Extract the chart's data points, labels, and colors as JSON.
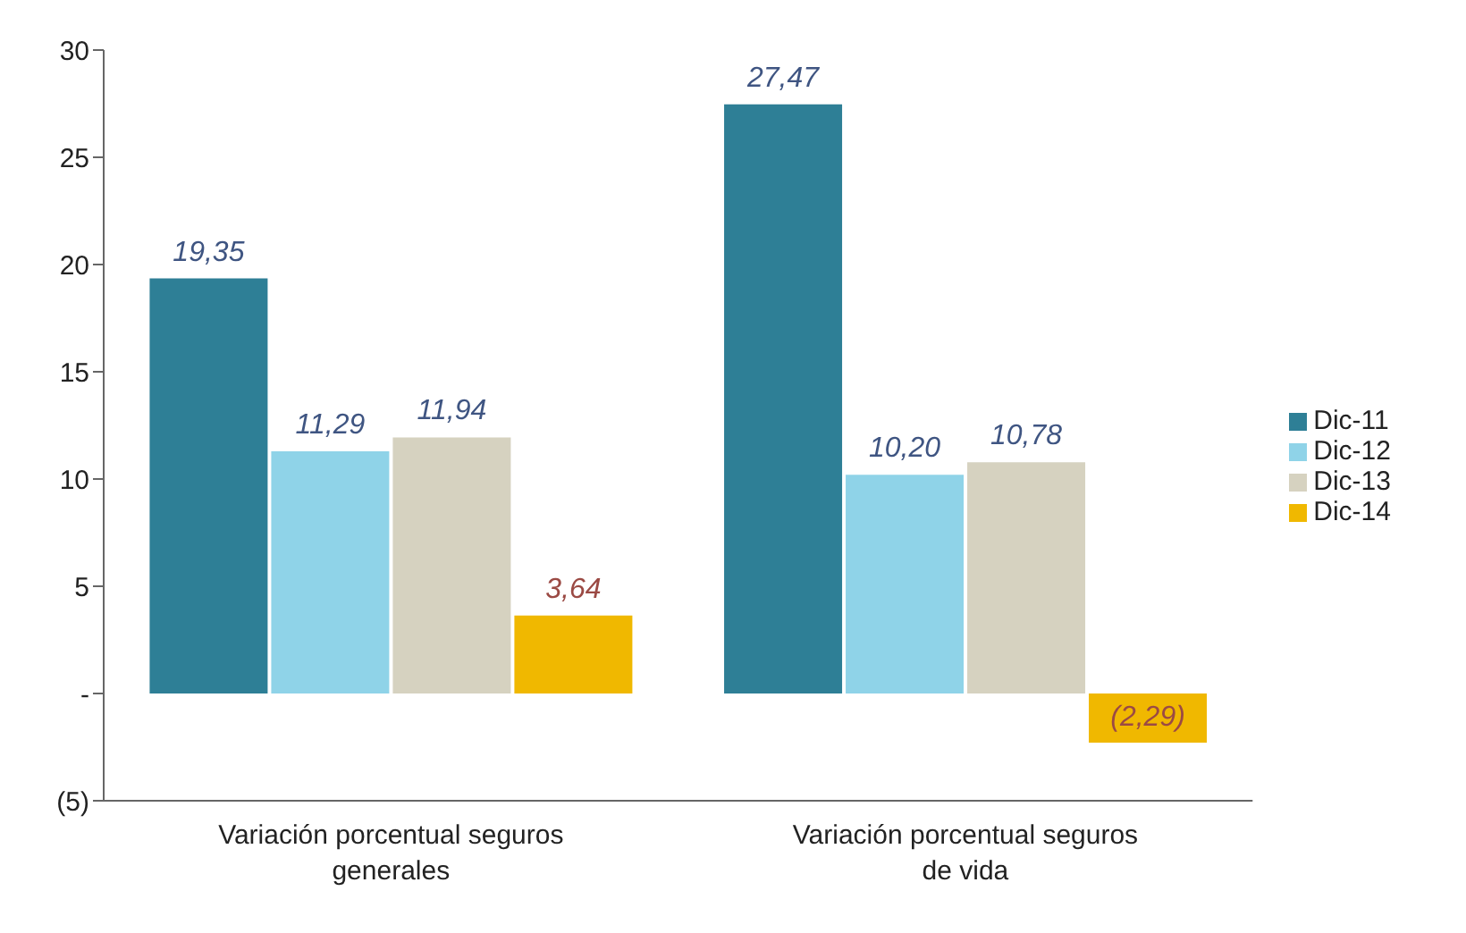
{
  "chart_data": {
    "type": "bar",
    "categories": [
      "Variación porcentual seguros generales",
      "Variación porcentual seguros de vida"
    ],
    "series": [
      {
        "name": "Dic-11",
        "color": "#2e7f96",
        "values": [
          19.35,
          27.47
        ],
        "value_labels": [
          "19,35",
          "27,47"
        ]
      },
      {
        "name": "Dic-12",
        "color": "#8fd3e8",
        "values": [
          11.29,
          10.2
        ],
        "value_labels": [
          "11,29",
          "10,20"
        ]
      },
      {
        "name": "Dic-13",
        "color": "#d6d2c0",
        "values": [
          11.94,
          10.78
        ],
        "value_labels": [
          "11,94",
          "10,78"
        ]
      },
      {
        "name": "Dic-14",
        "color": "#f0b800",
        "values": [
          3.64,
          -2.29
        ],
        "value_labels": [
          "3,64",
          "(2,29)"
        ]
      }
    ],
    "ylim": [
      -5,
      30
    ],
    "yticks": [
      {
        "value": -5,
        "label": "(5)"
      },
      {
        "value": 0,
        "label": "-"
      },
      5,
      10,
      15,
      20,
      25,
      30
    ],
    "grid": false,
    "legend": "right"
  }
}
